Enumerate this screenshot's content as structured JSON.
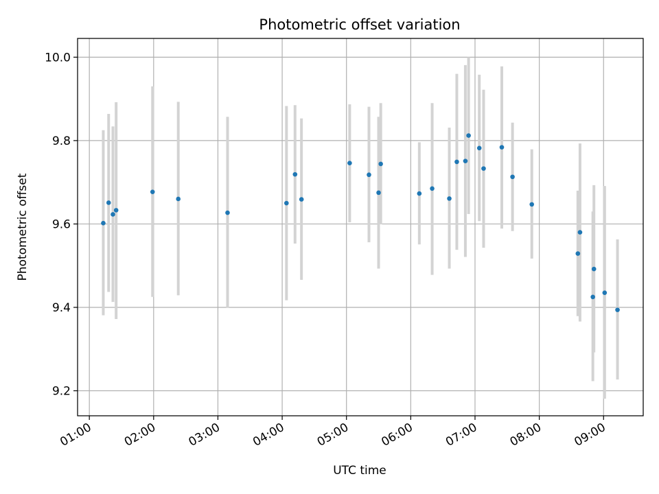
{
  "chart_data": {
    "type": "scatter",
    "title": "Photometric offset variation",
    "xlabel": "UTC time",
    "ylabel": "Photometric offset",
    "xlim": [
      "00:49",
      "09:37"
    ],
    "ylim": [
      9.14,
      10.045
    ],
    "xticks": [
      "01:00",
      "02:00",
      "03:00",
      "04:00",
      "05:00",
      "06:00",
      "07:00",
      "08:00",
      "09:00"
    ],
    "yticks": [
      9.2,
      9.4,
      9.6,
      9.8,
      10.0
    ],
    "ytick_labels": [
      "9.2",
      "9.4",
      "9.6",
      "9.8",
      "10.0"
    ],
    "grid": true,
    "errorbar_color": "#d3d3d3",
    "marker_color": "#1f77b4",
    "series": [
      {
        "points": [
          {
            "x": "01:13",
            "y": 9.602,
            "err_lo": 9.381,
            "err_hi": 9.825
          },
          {
            "x": "01:18",
            "y": 9.651,
            "err_lo": 9.437,
            "err_hi": 9.864
          },
          {
            "x": "01:22",
            "y": 9.623,
            "err_lo": 9.413,
            "err_hi": 9.834
          },
          {
            "x": "01:25",
            "y": 9.633,
            "err_lo": 9.372,
            "err_hi": 9.892
          },
          {
            "x": "01:59",
            "y": 9.677,
            "err_lo": 9.425,
            "err_hi": 9.93
          },
          {
            "x": "02:23",
            "y": 9.66,
            "err_lo": 9.429,
            "err_hi": 9.893
          },
          {
            "x": "03:09",
            "y": 9.627,
            "err_lo": 9.399,
            "err_hi": 9.857
          },
          {
            "x": "04:04",
            "y": 9.65,
            "err_lo": 9.417,
            "err_hi": 9.883
          },
          {
            "x": "04:12",
            "y": 9.719,
            "err_lo": 9.553,
            "err_hi": 9.885
          },
          {
            "x": "04:18",
            "y": 9.659,
            "err_lo": 9.466,
            "err_hi": 9.853
          },
          {
            "x": "05:03",
            "y": 9.746,
            "err_lo": 9.604,
            "err_hi": 9.887
          },
          {
            "x": "05:21",
            "y": 9.718,
            "err_lo": 9.556,
            "err_hi": 9.881
          },
          {
            "x": "05:30",
            "y": 9.675,
            "err_lo": 9.493,
            "err_hi": 9.857
          },
          {
            "x": "05:32",
            "y": 9.744,
            "err_lo": 9.599,
            "err_hi": 9.89
          },
          {
            "x": "06:08",
            "y": 9.673,
            "err_lo": 9.551,
            "err_hi": 9.796
          },
          {
            "x": "06:20",
            "y": 9.685,
            "err_lo": 9.478,
            "err_hi": 9.89
          },
          {
            "x": "06:36",
            "y": 9.661,
            "err_lo": 9.493,
            "err_hi": 9.831
          },
          {
            "x": "06:43",
            "y": 9.749,
            "err_lo": 9.538,
            "err_hi": 9.96
          },
          {
            "x": "06:51",
            "y": 9.751,
            "err_lo": 9.521,
            "err_hi": 9.981
          },
          {
            "x": "06:54",
            "y": 9.812,
            "err_lo": 9.624,
            "err_hi": 10.0
          },
          {
            "x": "07:04",
            "y": 9.782,
            "err_lo": 9.607,
            "err_hi": 9.958
          },
          {
            "x": "07:08",
            "y": 9.733,
            "err_lo": 9.543,
            "err_hi": 9.922
          },
          {
            "x": "07:25",
            "y": 9.784,
            "err_lo": 9.589,
            "err_hi": 9.978
          },
          {
            "x": "07:35",
            "y": 9.713,
            "err_lo": 9.583,
            "err_hi": 9.843
          },
          {
            "x": "07:53",
            "y": 9.647,
            "err_lo": 9.517,
            "err_hi": 9.779
          },
          {
            "x": "08:36",
            "y": 9.529,
            "err_lo": 9.379,
            "err_hi": 9.68
          },
          {
            "x": "08:38",
            "y": 9.58,
            "err_lo": 9.366,
            "err_hi": 9.793
          },
          {
            "x": "08:50",
            "y": 9.425,
            "err_lo": 9.223,
            "err_hi": 9.63
          },
          {
            "x": "08:51",
            "y": 9.492,
            "err_lo": 9.292,
            "err_hi": 9.693
          },
          {
            "x": "09:01",
            "y": 9.435,
            "err_lo": 9.181,
            "err_hi": 9.691
          },
          {
            "x": "09:13",
            "y": 9.394,
            "err_lo": 9.227,
            "err_hi": 9.563
          }
        ]
      }
    ]
  }
}
